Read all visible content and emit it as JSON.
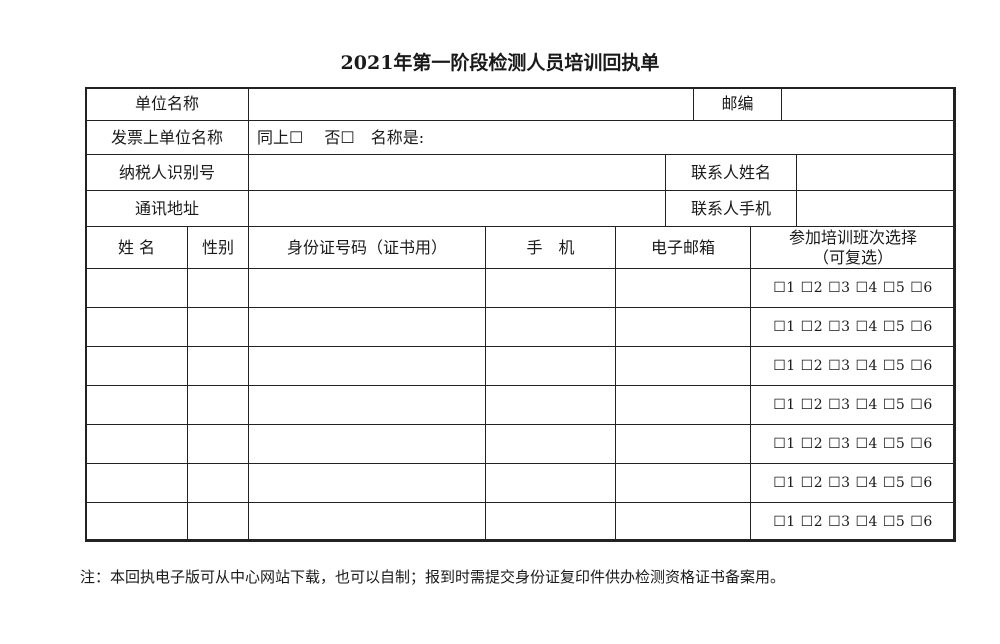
{
  "title": "2021年第一阶段检测人员培训回执单",
  "form": {
    "unit_name_label": "单位名称",
    "postcode_label": "邮编",
    "invoice_unit_label": "发票上单位名称",
    "invoice_options": "同上☐　 否☐　名称是:",
    "taxpayer_id_label": "纳税人识别号",
    "contact_name_label": "联系人姓名",
    "address_label": "通讯地址",
    "contact_phone_label": "联系人手机"
  },
  "table": {
    "headers": [
      "姓 名",
      "性别",
      "身份证号码（证书用）",
      "手　机",
      "电子邮箱",
      "参加培训班次选择\n（可复选）"
    ],
    "class_options": "☐1 ☐2 ☐3 ☐4 ☐5 ☐6",
    "row_count": 7
  },
  "note": "注：本回执电子版可从中心网站下载，也可以自制；报到时需提交身份证复印件供办检测资格证书备案用。"
}
